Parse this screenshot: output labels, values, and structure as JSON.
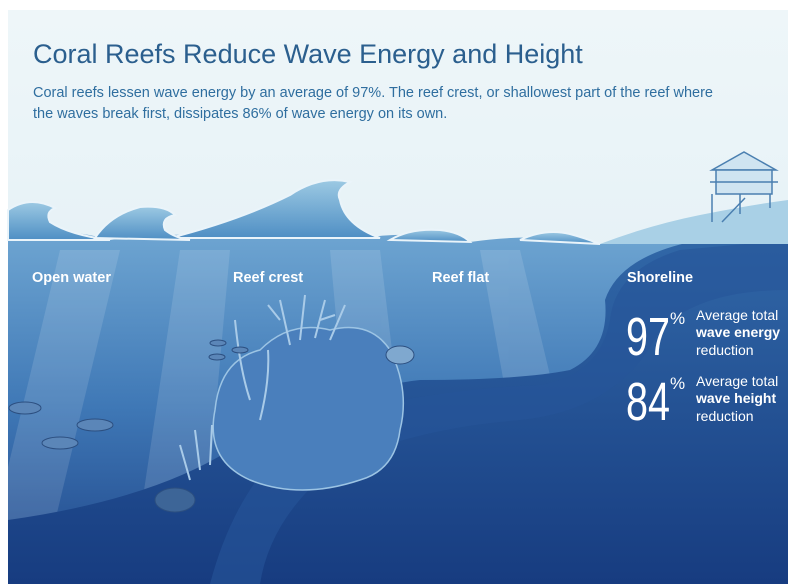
{
  "header": {
    "title": "Coral Reefs Reduce Wave Energy and Height",
    "subtitle_lines": [
      "Coral reefs lessen wave energy by an average of 97%. The reef crest, or shallowest part of the reef where",
      "the waves break first, dissipates 86% of wave energy on its own."
    ]
  },
  "zones": [
    "Open water",
    "Reef crest",
    "Reef flat",
    "Shoreline"
  ],
  "stats": [
    {
      "number": "97",
      "unit": "%",
      "lines": [
        "Average total",
        "wave energy",
        "reduction"
      ]
    },
    {
      "number": "84",
      "unit": "%",
      "lines": [
        "Average total",
        "wave height",
        "reduction"
      ]
    }
  ]
}
